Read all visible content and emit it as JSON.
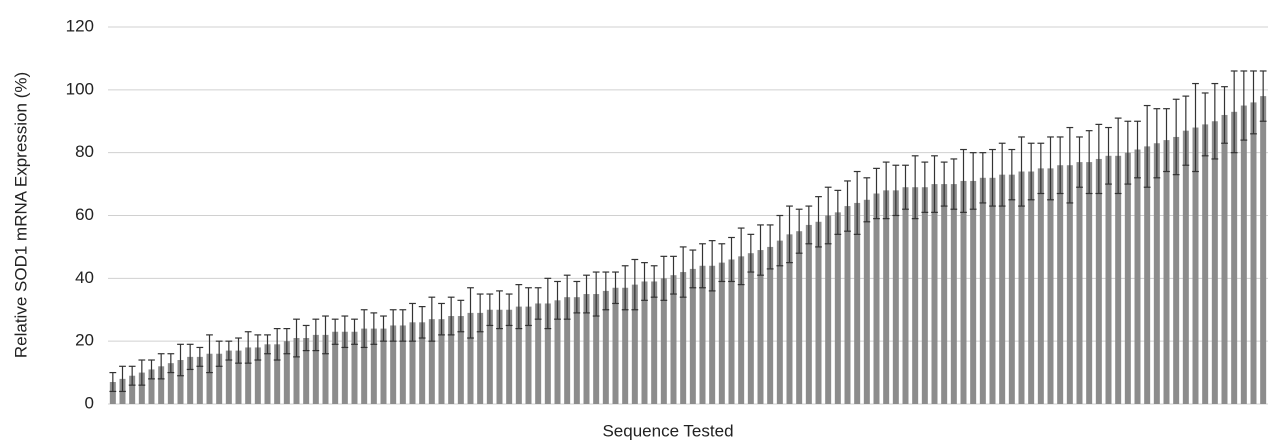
{
  "chart_data": {
    "type": "bar",
    "y_label": "Relative SOD1 mRNA Expression (%)",
    "x_label": "Sequence Tested",
    "color": "#8c8c8c",
    "error_color": "#333333",
    "grid": true,
    "ylim": [
      0,
      120
    ],
    "yticks": [
      0,
      20,
      40,
      60,
      80,
      100,
      120
    ],
    "categories": [
      null,
      null,
      null,
      null,
      null,
      null,
      null,
      null,
      null,
      null,
      null,
      null,
      null,
      null,
      null,
      null,
      null,
      null,
      null,
      null,
      null,
      null,
      null,
      null,
      null,
      null,
      null,
      null,
      null,
      null,
      null,
      null,
      null,
      null,
      null,
      null,
      null,
      null,
      null,
      null,
      null,
      null,
      null,
      null,
      null,
      null,
      null,
      null,
      null,
      null,
      null,
      null,
      null,
      null,
      null,
      null,
      null,
      null,
      null,
      null,
      null,
      null,
      null,
      null,
      null,
      null,
      null,
      null,
      null,
      null,
      null,
      null,
      null,
      null,
      null,
      null,
      null,
      null,
      null,
      null,
      null,
      null,
      null,
      null,
      null,
      null,
      null,
      null,
      null,
      null,
      null,
      null,
      null,
      null,
      null,
      null,
      null,
      null,
      null,
      null,
      null,
      null,
      null,
      null,
      null,
      null,
      null,
      null,
      null,
      null,
      null,
      null,
      null,
      null,
      null,
      null,
      null,
      null,
      null,
      null
    ],
    "values": [
      7,
      8,
      9,
      10,
      11,
      12,
      13,
      14,
      15,
      15,
      16,
      16,
      17,
      17,
      18,
      18,
      19,
      19,
      20,
      21,
      21,
      22,
      22,
      23,
      23,
      23,
      24,
      24,
      24,
      25,
      25,
      26,
      26,
      27,
      27,
      28,
      28,
      29,
      29,
      30,
      30,
      30,
      31,
      31,
      32,
      32,
      33,
      34,
      34,
      35,
      35,
      36,
      37,
      37,
      38,
      39,
      39,
      40,
      41,
      42,
      43,
      44,
      44,
      45,
      46,
      47,
      48,
      49,
      50,
      52,
      54,
      55,
      57,
      58,
      60,
      61,
      63,
      64,
      65,
      67,
      68,
      68,
      69,
      69,
      69,
      70,
      70,
      70,
      71,
      71,
      72,
      72,
      73,
      73,
      74,
      74,
      75,
      75,
      76,
      76,
      77,
      77,
      78,
      79,
      79,
      80,
      81,
      82,
      83,
      84,
      85,
      87,
      88,
      89,
      90,
      92,
      93,
      95,
      96,
      98
    ],
    "errors": [
      3,
      4,
      3,
      4,
      3,
      4,
      3,
      5,
      4,
      3,
      6,
      4,
      3,
      4,
      5,
      4,
      3,
      5,
      4,
      6,
      4,
      5,
      6,
      4,
      5,
      4,
      6,
      5,
      4,
      5,
      5,
      6,
      5,
      7,
      5,
      6,
      5,
      8,
      6,
      5,
      6,
      5,
      7,
      6,
      5,
      8,
      6,
      7,
      5,
      6,
      7,
      6,
      5,
      7,
      8,
      6,
      5,
      7,
      6,
      8,
      6,
      7,
      8,
      6,
      7,
      9,
      6,
      8,
      7,
      8,
      9,
      7,
      6,
      8,
      9,
      7,
      8,
      10,
      7,
      8,
      9,
      8,
      7,
      10,
      8,
      9,
      7,
      8,
      10,
      9,
      8,
      9,
      10,
      8,
      11,
      9,
      8,
      10,
      9,
      12,
      8,
      10,
      11,
      9,
      12,
      10,
      9,
      13,
      11,
      10,
      12,
      11,
      14,
      10,
      12,
      9,
      13,
      11,
      10,
      8
    ]
  }
}
